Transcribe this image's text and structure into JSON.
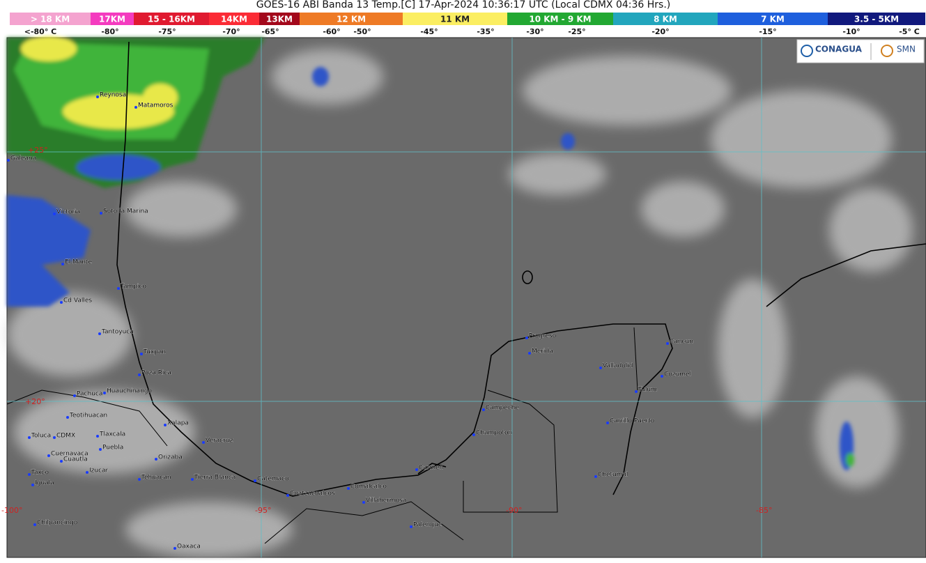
{
  "header": {
    "title": "GOES-16 ABI Banda 13 Temp.[C] 17-Apr-2024 10:36:17 UTC (Local CDMX  04:36 Hrs.)"
  },
  "colorbar": {
    "segments": [
      {
        "label": "> 18 KM",
        "color": "#f4a3cf"
      },
      {
        "label": "17KM",
        "color": "#f43bbf"
      },
      {
        "label": "15 - 16KM",
        "color": "#e01a30"
      },
      {
        "label": "14KM",
        "color": "#fb2b35"
      },
      {
        "label": "13KM",
        "color": "#a3081b"
      },
      {
        "label": "12 KM",
        "color": "#ee7a25"
      },
      {
        "label": "11 KM",
        "color": "#fbee62"
      },
      {
        "label": "10 KM - 9 KM",
        "color": "#22a832"
      },
      {
        "label": "8 KM",
        "color": "#22a6bd"
      },
      {
        "label": "7 KM",
        "color": "#1e5fdd"
      },
      {
        "label": "3.5 - 5KM",
        "color": "#11197d"
      }
    ],
    "temperatures": [
      "<-80° C",
      "-80°",
      "-75°",
      "-70°",
      "-65°",
      "-60°",
      "-50°",
      "-45°",
      "-35°",
      "-30°",
      "-25°",
      "-20°",
      "-15°",
      "-10°",
      "-5° C"
    ]
  },
  "grid_labels": [
    "+25°",
    "+20°",
    "-100°",
    "-95°",
    "-90°",
    "-85°"
  ],
  "cities": [
    "Reynosa",
    "Matamoros",
    "Galeana",
    "Victoria",
    "Soto la Marina",
    "El Mante",
    "Tampico",
    "Cd Valles",
    "Tantoyuca",
    "Tuxpan",
    "Poza Rica",
    "Huauchinango",
    "Pachuca",
    "Teotihuacan",
    "Toluca",
    "CDMX",
    "Tlaxcala",
    "Puebla",
    "Cuernavaca",
    "Cuautla",
    "Izucar",
    "Taxco",
    "Iguala",
    "Xalapa",
    "Veracruz",
    "Orizaba",
    "Tehuacan",
    "Tierra Blanca",
    "Catemaco",
    "Coatzacoalcos",
    "Comalcalco",
    "Villahermosa",
    "Chilpancingo",
    "Oaxaca",
    "Palenque",
    "Carmen",
    "Champoton",
    "Campeche",
    "Progreso",
    "Merida",
    "Valladolid",
    "Cancun",
    "Cozumel",
    "Tulum",
    "Carrillo Puerto",
    "Chetumal"
  ],
  "logos": {
    "left": "CONAGUA",
    "right": "SMN"
  }
}
